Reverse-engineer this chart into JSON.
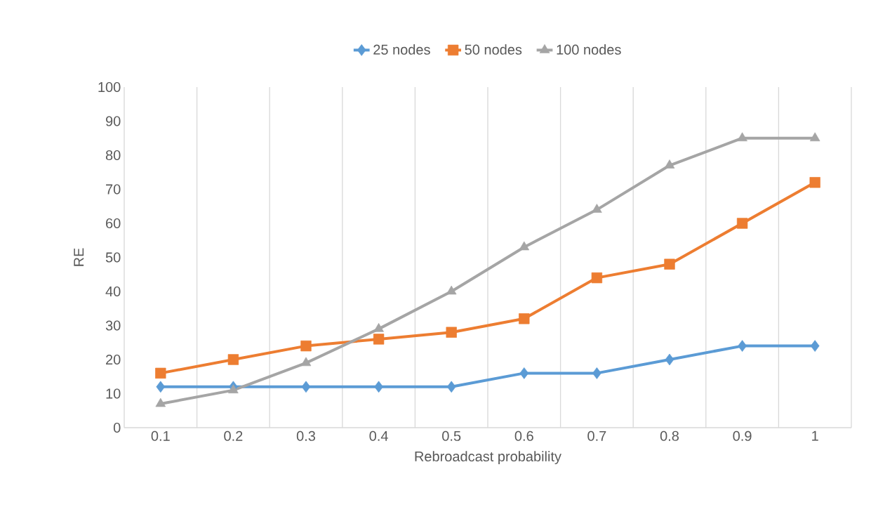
{
  "chart_data": {
    "type": "line",
    "xlabel": "Rebroadcast probability",
    "ylabel": "RE",
    "categories": [
      "0.1",
      "0.2",
      "0.3",
      "0.4",
      "0.5",
      "0.6",
      "0.7",
      "0.8",
      "0.9",
      "1"
    ],
    "series": [
      {
        "name": "25 nodes",
        "color": "#5b9bd5",
        "marker": "diamond",
        "values": [
          12,
          12,
          12,
          12,
          12,
          16,
          16,
          20,
          24,
          24
        ]
      },
      {
        "name": "50 nodes",
        "color": "#ed7d31",
        "marker": "square",
        "values": [
          16,
          20,
          24,
          26,
          28,
          32,
          44,
          48,
          60,
          72
        ]
      },
      {
        "name": "100 nodes",
        "color": "#a5a5a5",
        "marker": "triangle",
        "values": [
          7,
          11,
          19,
          29,
          40,
          53,
          64,
          77,
          85,
          85
        ]
      }
    ],
    "ylim": [
      0,
      100
    ],
    "yticks": [
      0,
      10,
      20,
      30,
      40,
      50,
      60,
      70,
      80,
      90,
      100
    ],
    "grid": "x",
    "legend": "top",
    "line_style": "solid"
  }
}
